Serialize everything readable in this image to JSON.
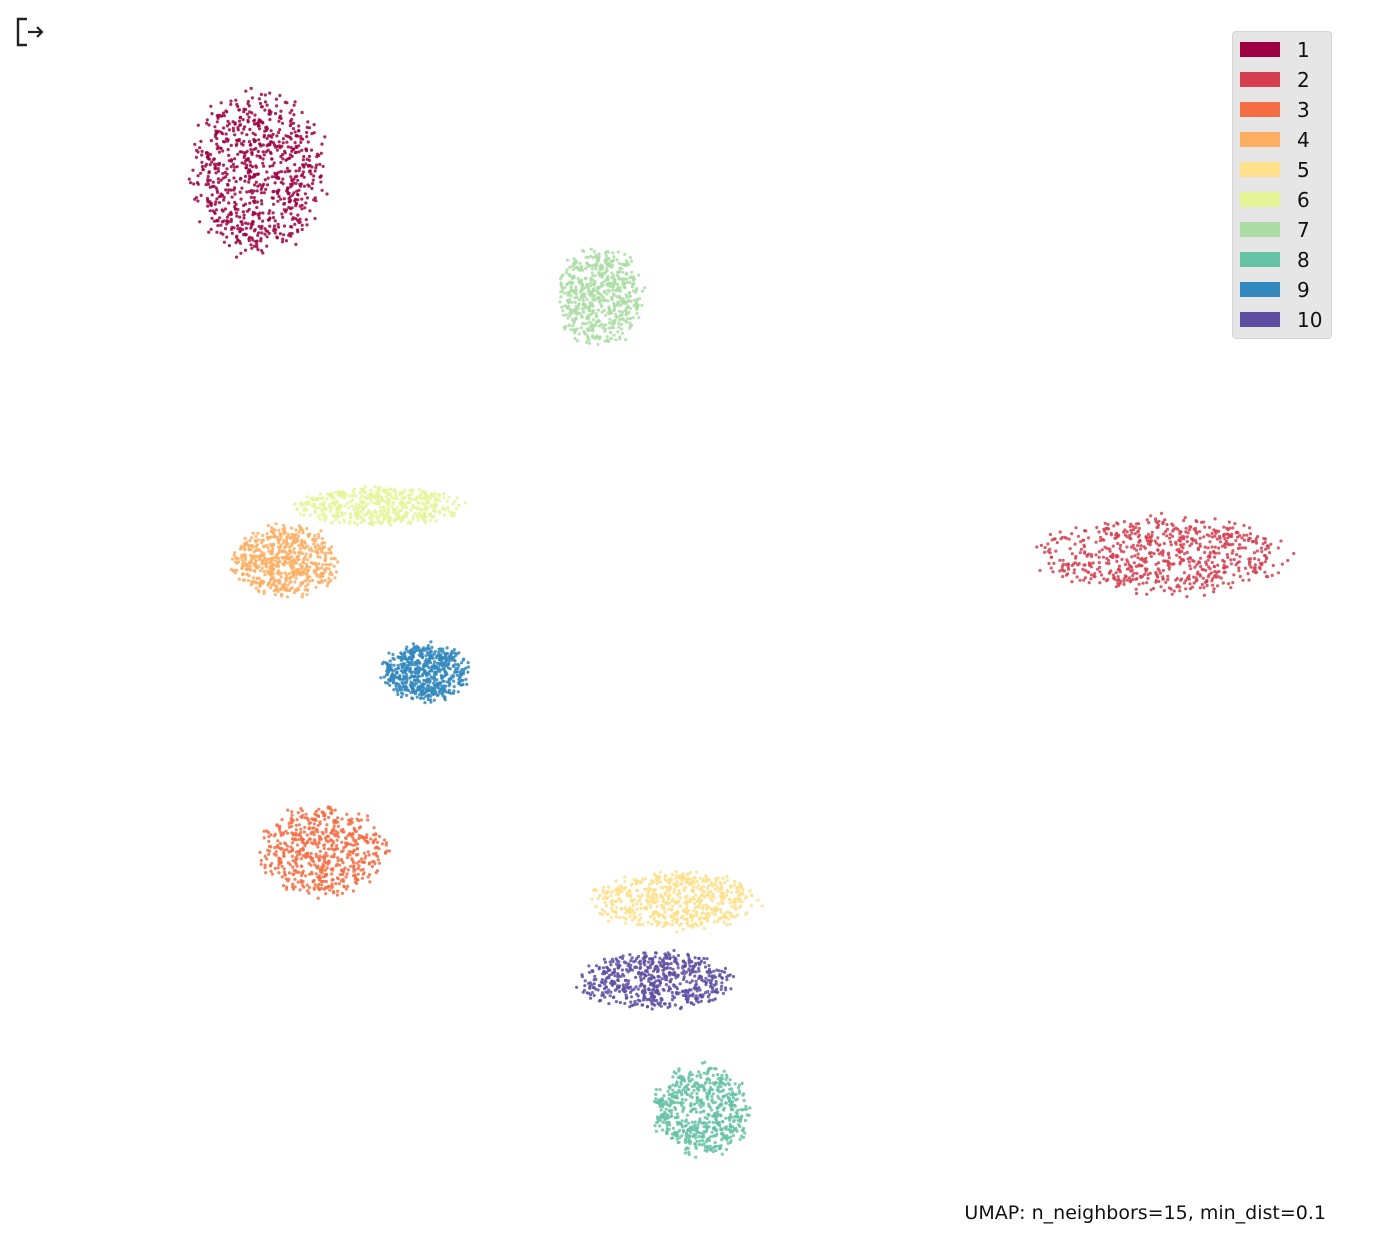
{
  "output_icon": "output-redirect-icon",
  "caption": "UMAP: n_neighbors=15, min_dist=0.1",
  "chart_data": {
    "type": "scatter",
    "grid": false,
    "axes_visible": false,
    "legend_placement": "top-right",
    "caption": "UMAP: n_neighbors=15, min_dist=0.1",
    "series": [
      {
        "label": "1",
        "color": "#9e0142",
        "clusters": [
          {
            "cx": 0.0,
            "cy": 9.0,
            "rx": 0.7,
            "ry": 1.25,
            "n": 800
          }
        ]
      },
      {
        "label": "2",
        "color": "#d53e4f",
        "clusters": [
          {
            "cx": 9.8,
            "cy": 2.8,
            "rx": 1.3,
            "ry": 0.6,
            "n": 700
          }
        ]
      },
      {
        "label": "3",
        "color": "#f46d43",
        "clusters": [
          {
            "cx": 0.7,
            "cy": -2.0,
            "rx": 0.65,
            "ry": 0.7,
            "n": 600
          }
        ]
      },
      {
        "label": "4",
        "color": "#fdae61",
        "clusters": [
          {
            "cx": 0.3,
            "cy": 2.7,
            "rx": 0.55,
            "ry": 0.55,
            "n": 600
          }
        ]
      },
      {
        "label": "5",
        "color": "#fee08b",
        "clusters": [
          {
            "cx": 4.5,
            "cy": -2.8,
            "rx": 0.85,
            "ry": 0.45,
            "n": 600
          }
        ]
      },
      {
        "label": "6",
        "color": "#e6f598",
        "clusters": [
          {
            "cx": 1.3,
            "cy": 3.6,
            "rx": 0.85,
            "ry": 0.3,
            "n": 500
          }
        ]
      },
      {
        "label": "7",
        "color": "#abdda4",
        "clusters": [
          {
            "cx": 3.7,
            "cy": 7.0,
            "rx": 0.45,
            "ry": 0.75,
            "n": 600
          }
        ]
      },
      {
        "label": "8",
        "color": "#66c2a5",
        "clusters": [
          {
            "cx": 4.8,
            "cy": -6.2,
            "rx": 0.5,
            "ry": 0.7,
            "n": 600
          }
        ]
      },
      {
        "label": "9",
        "color": "#3288bd",
        "clusters": [
          {
            "cx": 1.8,
            "cy": 0.9,
            "rx": 0.45,
            "ry": 0.45,
            "n": 600
          }
        ]
      },
      {
        "label": "10",
        "color": "#5e4fa2",
        "clusters": [
          {
            "cx": 4.3,
            "cy": -4.1,
            "rx": 0.8,
            "ry": 0.45,
            "n": 600
          }
        ]
      }
    ],
    "xlim": [
      -1.5,
      11.5
    ],
    "ylim": [
      -7.5,
      11.0
    ]
  }
}
